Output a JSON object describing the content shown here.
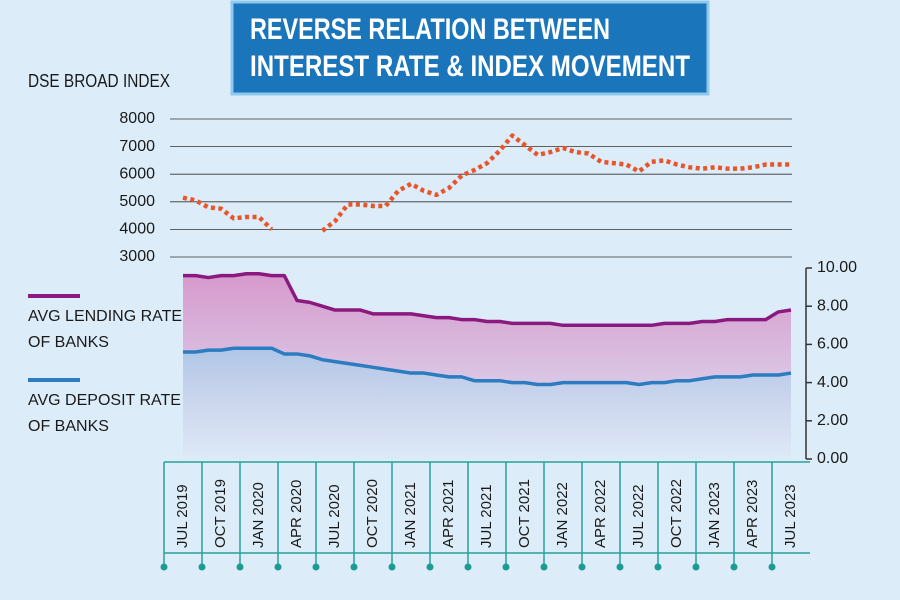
{
  "chart_data": {
    "type": "line",
    "title": [
      "REVERSE RELATION BETWEEN",
      "INTEREST RATE & INDEX MOVEMENT"
    ],
    "ylabel": "DSE BROAD INDEX",
    "categories": [
      "JUL 2019",
      null,
      null,
      "OCT 2019",
      null,
      null,
      "JAN 2020",
      null,
      null,
      "APR 2020",
      null,
      null,
      "JUL 2020",
      null,
      null,
      "OCT 2020",
      null,
      null,
      "JAN 2021",
      null,
      null,
      "APR 2021",
      null,
      null,
      "JUL 2021",
      null,
      null,
      "OCT 2021",
      null,
      null,
      "JAN 2022",
      null,
      null,
      "APR 2022",
      null,
      null,
      "JUL 2022",
      null,
      null,
      "OCT 2022",
      null,
      null,
      "JAN 2023",
      null,
      null,
      "APR 2023",
      null,
      null,
      "JUL 2023"
    ],
    "ylim": [
      3000,
      8000
    ],
    "yticks": [
      3000,
      4000,
      5000,
      6000,
      7000,
      8000
    ],
    "y2lim": [
      0,
      10
    ],
    "y2ticks": [
      {
        "value": 0,
        "label": "0.00"
      },
      {
        "value": 2,
        "label": "2.00"
      },
      {
        "value": 4,
        "label": "4.00"
      },
      {
        "value": 6,
        "label": "6.00"
      },
      {
        "value": 8,
        "label": "8.00"
      },
      {
        "value": 10,
        "label": "10.00"
      }
    ],
    "grid": true,
    "series": [
      {
        "color": "#e8552b",
        "style": "dotted",
        "values": [
          5150,
          5050,
          4800,
          4750,
          4400,
          4450,
          4450,
          4000,
          null,
          null,
          null,
          3950,
          4300,
          4900,
          4900,
          4850,
          4850,
          5400,
          5650,
          5400,
          5250,
          5500,
          5950,
          6150,
          6400,
          6850,
          7400,
          7050,
          6700,
          6800,
          6950,
          6800,
          6750,
          6450,
          6400,
          6350,
          6100,
          6450,
          6500,
          6350,
          6250,
          6200,
          6250,
          6200,
          6200,
          6250,
          6350,
          6350,
          6350
        ]
      },
      {
        "name": "AVG LENDING RATE OF BANKS",
        "color": "#8b1a80",
        "fill": "#d68ac4",
        "axis": "y2",
        "values": [
          9.6,
          9.6,
          9.5,
          9.6,
          9.6,
          9.7,
          9.7,
          9.6,
          9.6,
          8.3,
          8.2,
          8.0,
          7.8,
          7.8,
          7.8,
          7.6,
          7.6,
          7.6,
          7.6,
          7.5,
          7.4,
          7.4,
          7.3,
          7.3,
          7.2,
          7.2,
          7.1,
          7.1,
          7.1,
          7.1,
          7.0,
          7.0,
          7.0,
          7.0,
          7.0,
          7.0,
          7.0,
          7.0,
          7.1,
          7.1,
          7.1,
          7.2,
          7.2,
          7.3,
          7.3,
          7.3,
          7.3,
          7.7,
          7.8
        ]
      },
      {
        "name": "AVG DEPOSIT RATE OF BANKS",
        "color": "#2b7cc0",
        "fill": "#a9c8e8",
        "axis": "y2",
        "values": [
          5.6,
          5.6,
          5.7,
          5.7,
          5.8,
          5.8,
          5.8,
          5.8,
          5.5,
          5.5,
          5.4,
          5.2,
          5.1,
          5.0,
          4.9,
          4.8,
          4.7,
          4.6,
          4.5,
          4.5,
          4.4,
          4.3,
          4.3,
          4.1,
          4.1,
          4.1,
          4.0,
          4.0,
          3.9,
          3.9,
          4.0,
          4.0,
          4.0,
          4.0,
          4.0,
          4.0,
          3.9,
          4.0,
          4.0,
          4.1,
          4.1,
          4.2,
          4.3,
          4.3,
          4.3,
          4.4,
          4.4,
          4.4,
          4.5
        ]
      }
    ]
  }
}
